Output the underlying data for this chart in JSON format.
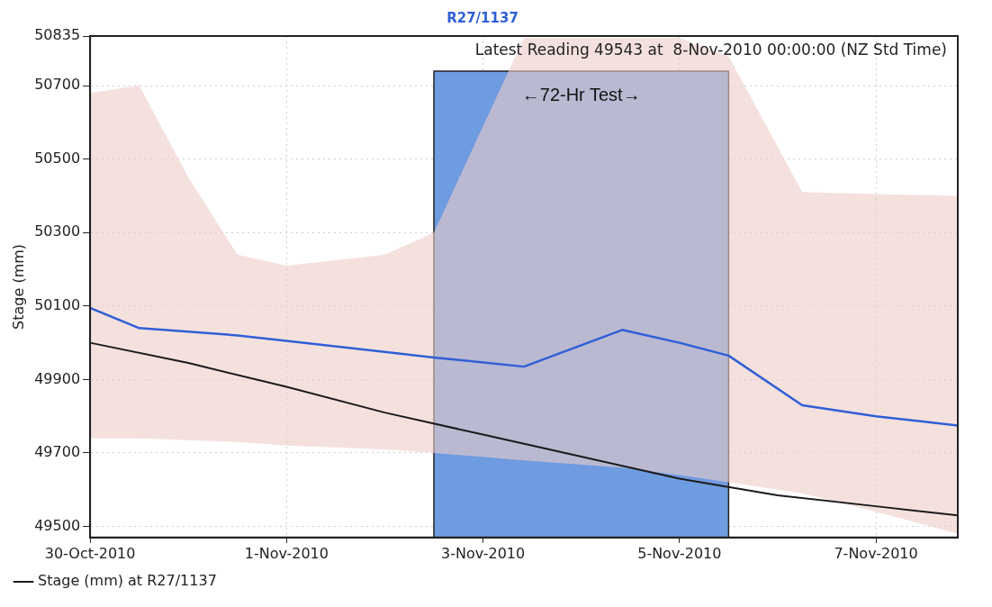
{
  "chart_data": {
    "type": "line",
    "title": "R27/1137",
    "ylabel": "Stage (mm)",
    "xlim": [
      "2010-10-30T00:00",
      "2010-11-07T20:00"
    ],
    "xticks": [
      {
        "value": "2010-10-30",
        "label": "30-Oct-2010"
      },
      {
        "value": "2010-11-01",
        "label": "1-Nov-2010"
      },
      {
        "value": "2010-11-03",
        "label": "3-Nov-2010"
      },
      {
        "value": "2010-11-05",
        "label": "5-Nov-2010"
      },
      {
        "value": "2010-11-07",
        "label": "7-Nov-2010"
      }
    ],
    "ylim": [
      49470,
      50835
    ],
    "yticks": [
      49500,
      49700,
      49900,
      50100,
      50300,
      50500,
      50700,
      50835
    ],
    "grid": true,
    "legend": "bottom left",
    "marker": "none",
    "line_style": "solid",
    "series": [
      {
        "color": "#2f5fd6",
        "x": [
          "2010-10-30T00:00",
          "2010-10-30T12:00",
          "2010-10-31T00:00",
          "2010-10-31T12:00",
          "2010-11-01T00:00",
          "2010-11-02T00:00",
          "2010-11-02T12:00",
          "2010-11-03T10:00",
          "2010-11-04T10:00",
          "2010-11-05T00:00",
          "2010-11-05T12:00",
          "2010-11-06T06:00",
          "2010-11-07T00:00",
          "2010-11-07T20:00"
        ],
        "values": [
          50095,
          50040,
          50030,
          50020,
          50005,
          49975,
          49960,
          49935,
          50035,
          50000,
          49965,
          49830,
          49800,
          49775
        ],
        "lower": [
          49740,
          49740,
          49735,
          49730,
          49720,
          49710,
          49700,
          49680,
          49660,
          49640,
          49620,
          49590,
          49540,
          49480
        ],
        "upper": [
          50680,
          50700,
          50450,
          50240,
          50210,
          50240,
          50300,
          50830,
          50830,
          50830,
          50780,
          50410,
          50405,
          50400
        ]
      },
      {
        "name": "Stage (mm) at R27/1137",
        "color": "#1a1a1a",
        "x": [
          "2010-10-30T00:00",
          "2010-10-31T00:00",
          "2010-11-01T00:00",
          "2010-11-02T00:00",
          "2010-11-03T00:00",
          "2010-11-04T00:00",
          "2010-11-05T00:00",
          "2010-11-06T00:00",
          "2010-11-07T00:00",
          "2010-11-07T20:00"
        ],
        "values": [
          50000,
          49945,
          49880,
          49810,
          49750,
          49690,
          49630,
          49585,
          49555,
          49530
        ]
      }
    ],
    "bands": [
      {
        "axis": "x",
        "from": "2010-11-02T12:00",
        "to": "2010-11-05T12:00",
        "label": "←72-Hr Test→",
        "color": "#6f9be0"
      }
    ],
    "annotations": [
      "Latest Reading 49543 at  8-Nov-2010 00:00:00 (NZ Std Time)"
    ]
  }
}
